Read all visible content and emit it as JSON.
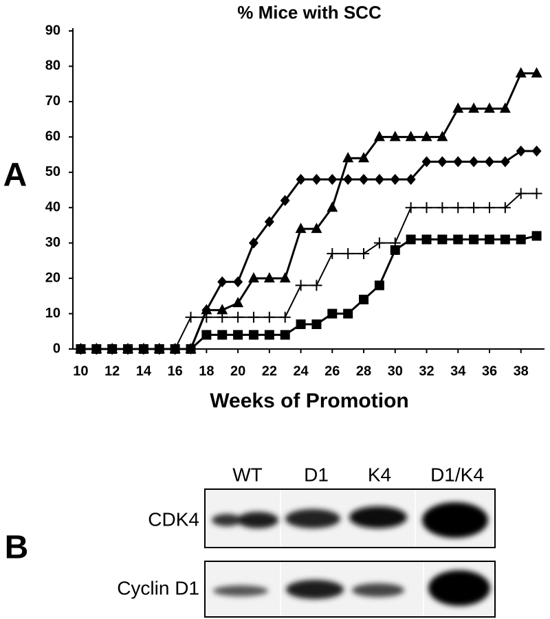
{
  "panels": {
    "a": "A",
    "b": "B"
  },
  "chart_data": {
    "type": "line",
    "title": "% Mice with SCC",
    "x_label": "Weeks of Promotion",
    "x": [
      10,
      11,
      12,
      13,
      14,
      15,
      16,
      17,
      18,
      19,
      20,
      21,
      22,
      23,
      24,
      25,
      26,
      27,
      28,
      29,
      30,
      31,
      32,
      33,
      34,
      35,
      36,
      37,
      38,
      39
    ],
    "xlim": [
      9.5,
      39.5
    ],
    "xticks": [
      10,
      12,
      14,
      16,
      18,
      20,
      22,
      24,
      26,
      28,
      30,
      32,
      34,
      36,
      38
    ],
    "ylim": [
      0,
      90
    ],
    "yticks": [
      0,
      10,
      20,
      30,
      40,
      50,
      60,
      70,
      80,
      90
    ],
    "grid": false,
    "series": [
      {
        "color": "#000000",
        "marker": "triangle",
        "values": [
          0,
          0,
          0,
          0,
          0,
          0,
          0,
          0,
          11,
          11,
          13,
          20,
          20,
          20,
          34,
          34,
          40,
          54,
          54,
          60,
          60,
          60,
          60,
          60,
          68,
          68,
          68,
          68,
          78,
          78
        ]
      },
      {
        "color": "#000000",
        "marker": "diamond",
        "values": [
          0,
          0,
          0,
          0,
          0,
          0,
          0,
          0,
          11,
          19,
          19,
          30,
          36,
          42,
          48,
          48,
          48,
          48,
          48,
          48,
          48,
          48,
          53,
          53,
          53,
          53,
          53,
          53,
          56,
          56
        ]
      },
      {
        "color": "#000000",
        "marker": "plus",
        "values": [
          0,
          0,
          0,
          0,
          0,
          0,
          0,
          9,
          9,
          9,
          9,
          9,
          9,
          9,
          18,
          18,
          27,
          27,
          27,
          30,
          30,
          40,
          40,
          40,
          40,
          40,
          40,
          40,
          44,
          44
        ]
      },
      {
        "color": "#000000",
        "marker": "square",
        "values": [
          0,
          0,
          0,
          0,
          0,
          0,
          0,
          0,
          4,
          4,
          4,
          4,
          4,
          4,
          7,
          7,
          10,
          10,
          14,
          18,
          28,
          31,
          31,
          31,
          31,
          31,
          31,
          31,
          31,
          32
        ]
      }
    ]
  },
  "blot": {
    "lanes": [
      "WT",
      "D1",
      "K4",
      "D1/K4"
    ],
    "rows": [
      "CDK4",
      "Cyclin D1"
    ]
  }
}
